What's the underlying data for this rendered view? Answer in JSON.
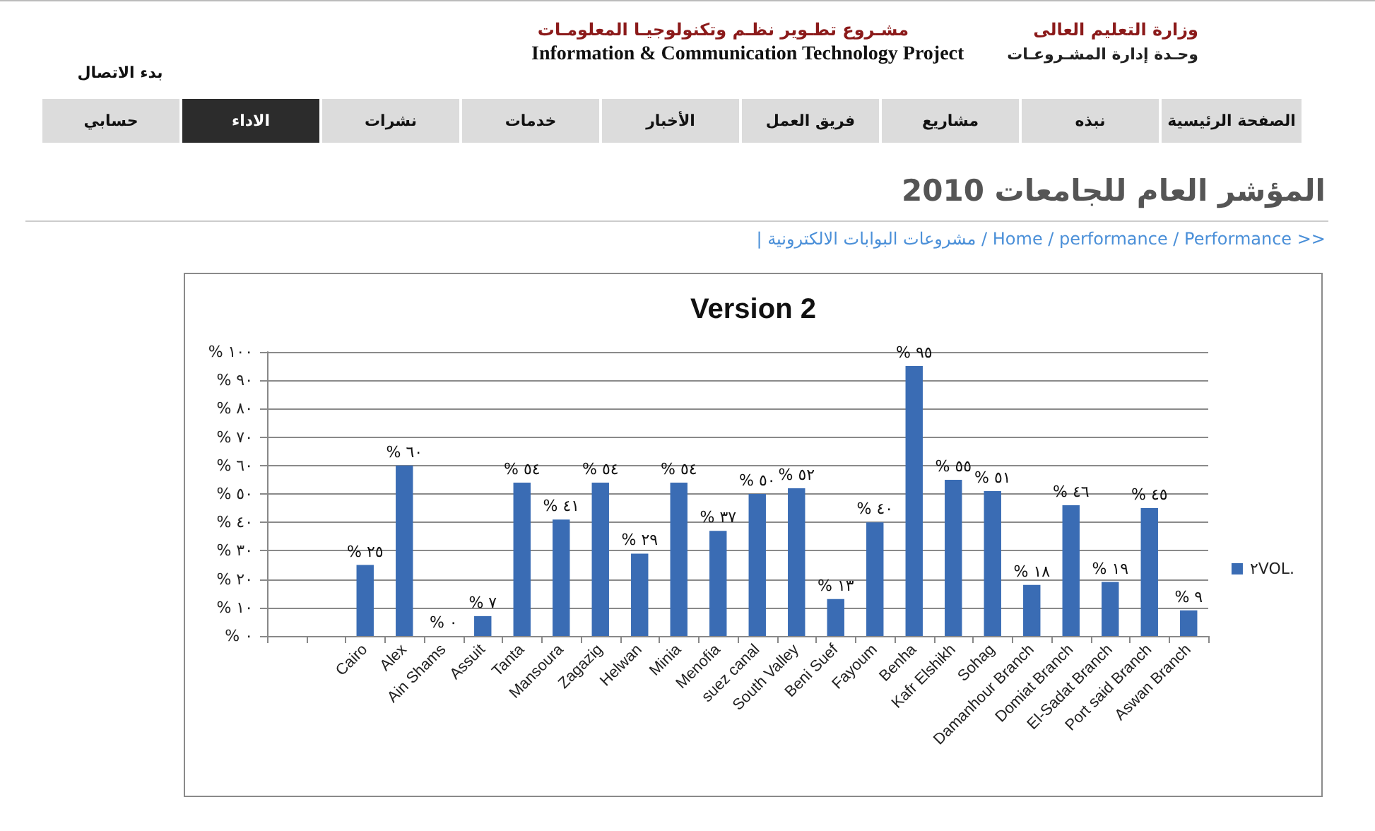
{
  "chart_data": {
    "type": "bar",
    "title": "Version 2",
    "categories": [
      null,
      null,
      "Cairo",
      "Alex",
      "Ain Shams",
      "Assuit",
      "Tanta",
      "Mansoura",
      "Zagazig",
      "Helwan",
      "Minia",
      "Menofia",
      "suez canal",
      "South Valley",
      "Beni Suef",
      "Fayoum",
      "Benha",
      "Kafr Elshikh",
      "Sohag",
      "Damanhour Branch",
      "Domiat Branch",
      "El-Sadat Branch",
      "Port said Branch",
      "Aswan Branch"
    ],
    "series": [
      {
        "name": "٢VOL.",
        "color": "#3a6cb4",
        "values": [
          null,
          null,
          25,
          60,
          0,
          7,
          54,
          41,
          54,
          29,
          54,
          37,
          50,
          52,
          13,
          40,
          95,
          55,
          51,
          18,
          46,
          19,
          45,
          9
        ],
        "value_labels": [
          null,
          null,
          "% ٢٥",
          "% ٦٠",
          "% ٠",
          "% ٧",
          "% ٥٤",
          "% ٤١",
          "% ٥٤",
          "% ٢٩",
          "% ٥٤",
          "% ٣٧",
          "% ٥٠",
          "% ٥٢",
          "% ١٣",
          "% ٤٠",
          "% ٩٥",
          "% ٥٥",
          "% ٥١",
          "% ١٨",
          "% ٤٦",
          "% ١٩",
          "% ٤٥",
          "% ٩"
        ]
      }
    ],
    "ylim": [
      0,
      100
    ],
    "yticks": [
      {
        "value": 0,
        "label": "% ٠"
      },
      {
        "value": 10,
        "label": "% ١٠"
      },
      {
        "value": 20,
        "label": "% ٢٠"
      },
      {
        "value": 30,
        "label": "% ٣٠"
      },
      {
        "value": 40,
        "label": "% ٤٠"
      },
      {
        "value": 50,
        "label": "% ٥٠"
      },
      {
        "value": 60,
        "label": "% ٦٠"
      },
      {
        "value": 70,
        "label": "% ٧٠"
      },
      {
        "value": 80,
        "label": "% ٨٠"
      },
      {
        "value": 90,
        "label": "% ٩٠"
      },
      {
        "value": 100,
        "label": "% ١٠٠"
      }
    ],
    "grid": "y",
    "legend": "right",
    "annotations": [
      "وزارة التعليم العالى",
      "وحـدة إدارة المشـروعـات",
      "مشـروع تطـوير نظـم وتكنولوجيـا المعلومـات",
      "Information & Communication Technology Project",
      "بدء الاتصال",
      "الصفحة الرئيسية",
      "نبذه",
      "مشاريع",
      "فريق العمل",
      "الأخبار",
      "خدمات",
      "نشرات",
      "الاداء",
      "حسابي",
      "المؤشر العام للجامعات 2010",
      "| مشروعات البوابات الالكترونية / Home / performance / Performance >>"
    ]
  }
}
